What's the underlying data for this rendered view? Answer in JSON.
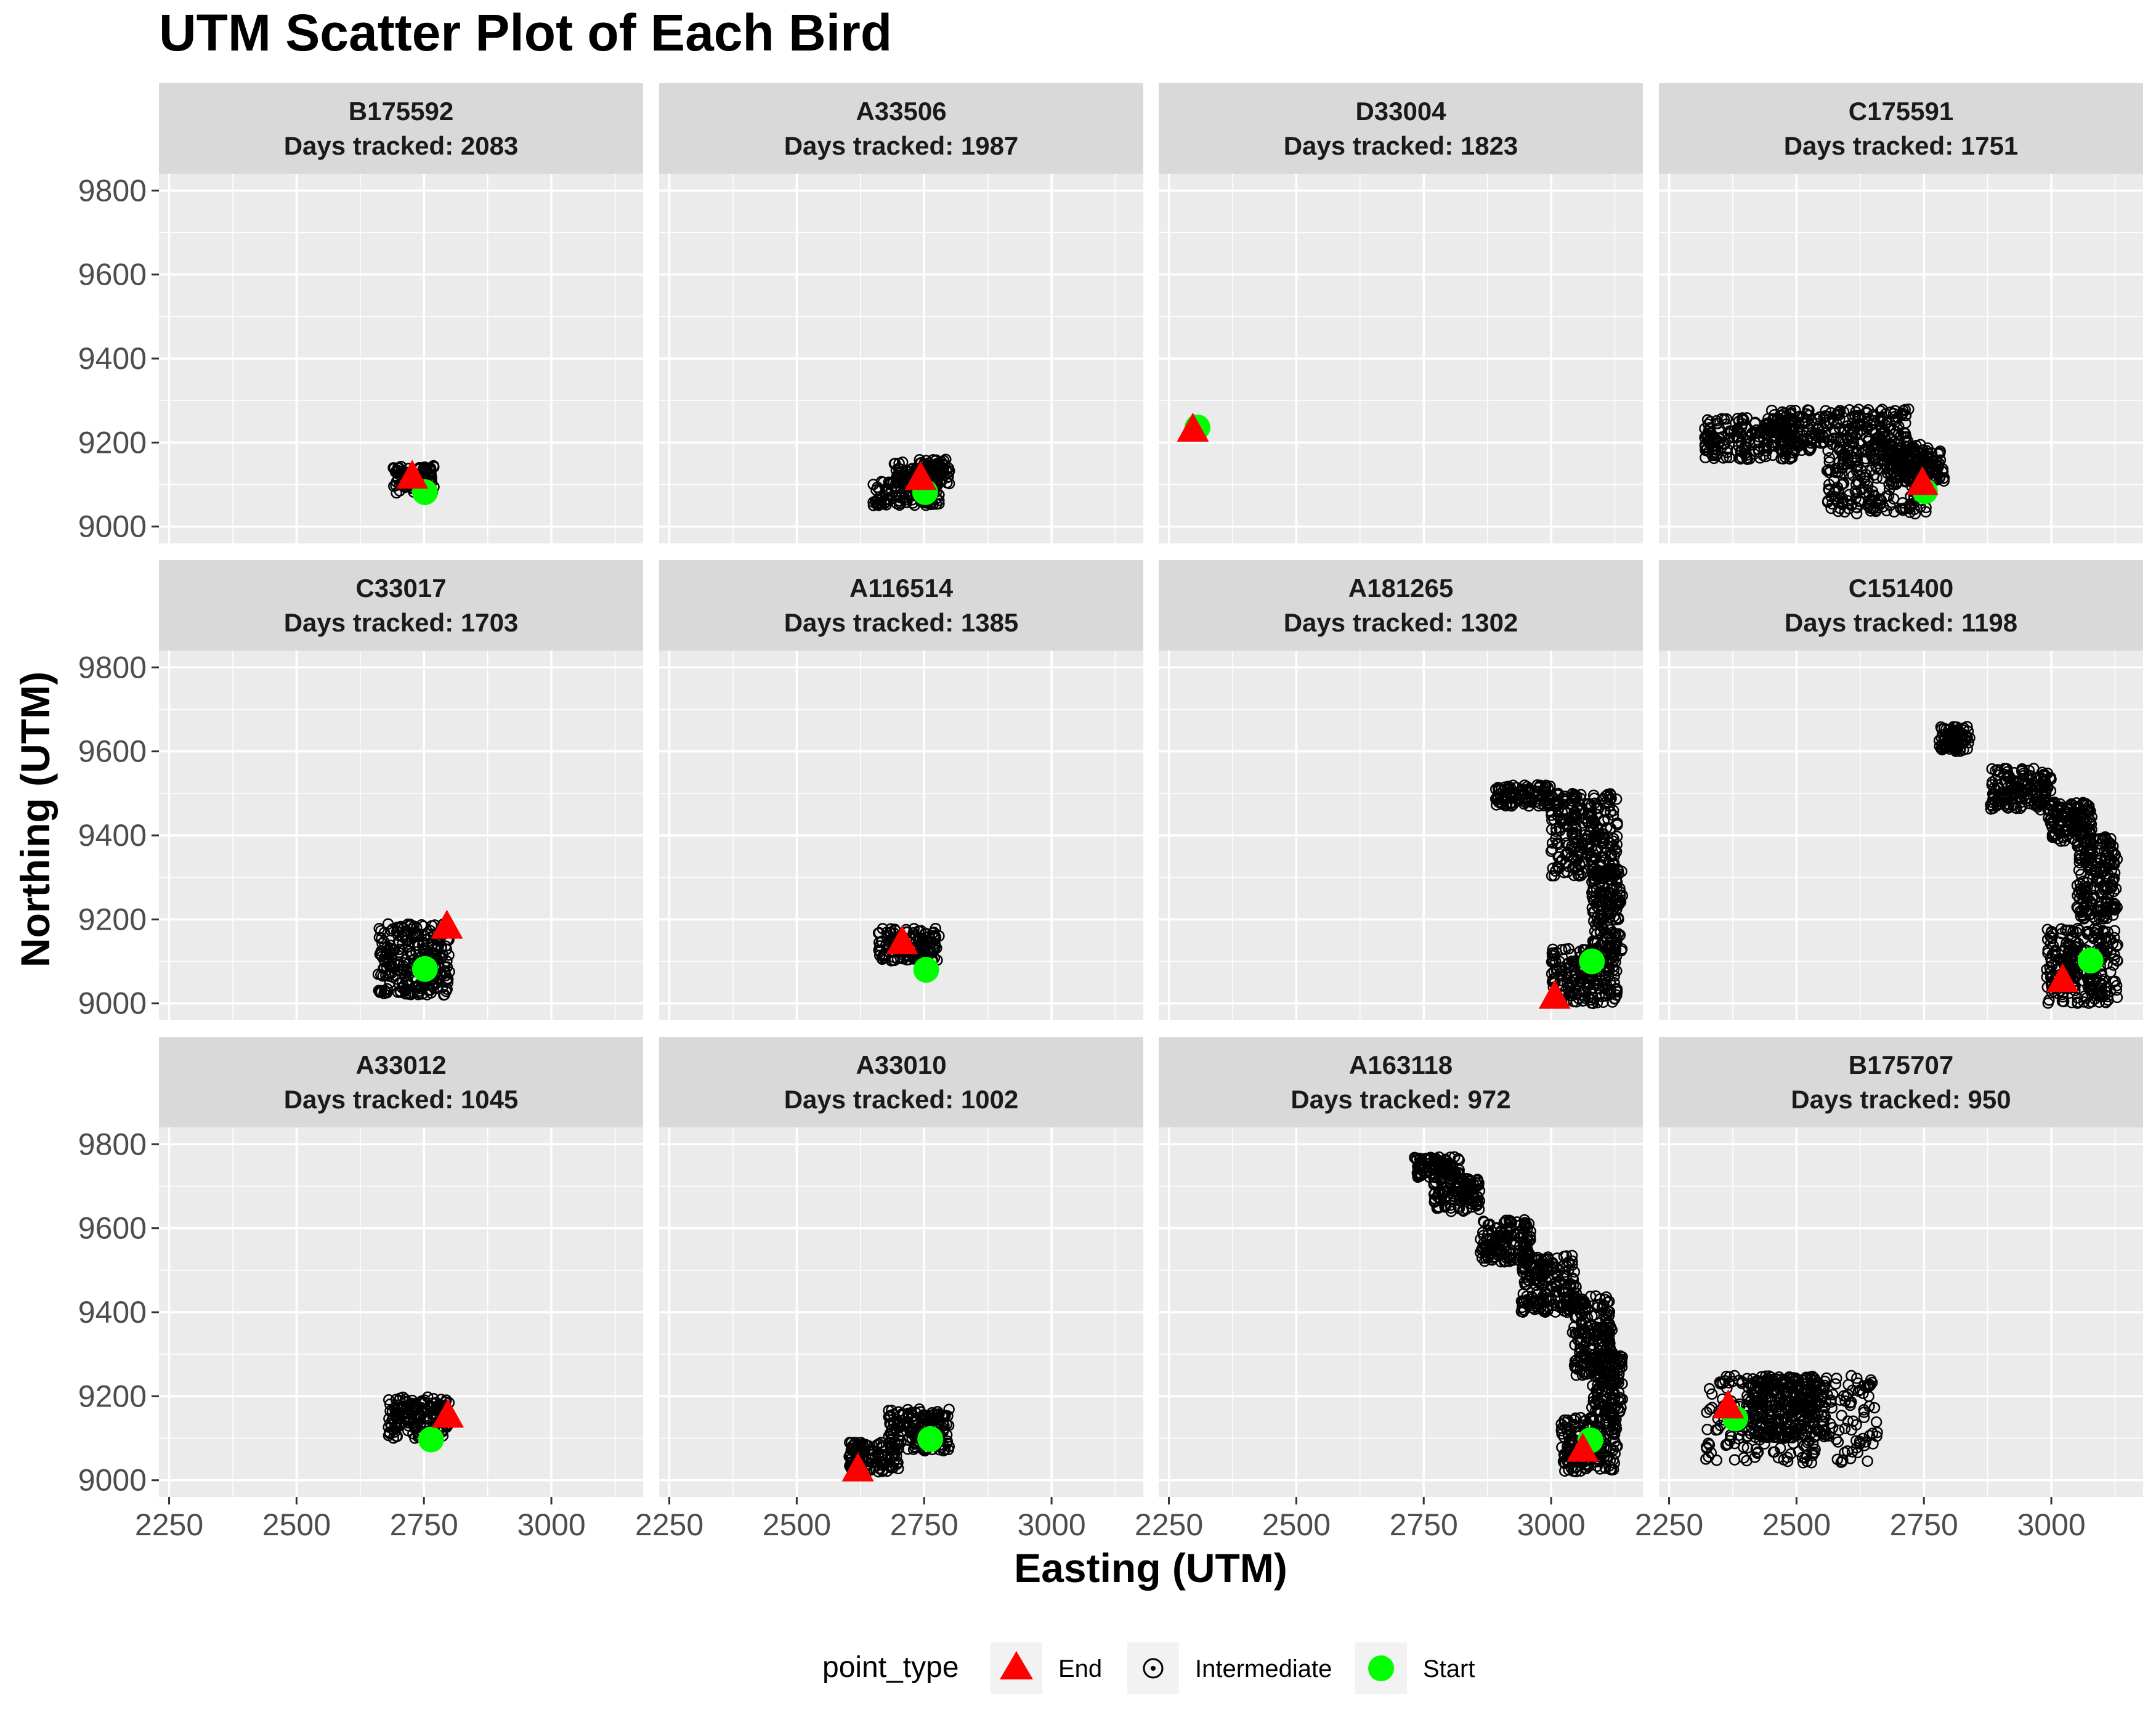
{
  "chart_data": {
    "type": "scatter",
    "title": "UTM Scatter Plot of Each Bird",
    "xlabel": "Easting (UTM)",
    "ylabel": "Northing (UTM)",
    "xlim": [
      2230,
      3180
    ],
    "ylim": [
      8960,
      9840
    ],
    "x_ticks": [
      2250,
      2500,
      2750,
      3000
    ],
    "y_ticks": [
      9000,
      9200,
      9400,
      9600,
      9800
    ],
    "grid": true,
    "legend": {
      "title": "point_type",
      "position": "bottom",
      "items": [
        {
          "label": "End",
          "shape": "triangle",
          "color": "#ff0000"
        },
        {
          "label": "Intermediate",
          "shape": "open-circle",
          "color": "#000000"
        },
        {
          "label": "Start",
          "shape": "circle",
          "color": "#00ff00"
        }
      ]
    },
    "facets": [
      {
        "id": "B175592",
        "days_label": "Days tracked: 2083",
        "start": [
          2752,
          9082
        ],
        "end": [
          2727,
          9118
        ],
        "intermediate_areas": [
          [
            2690,
            2770,
            9080,
            9145
          ]
        ]
      },
      {
        "id": "A33506",
        "days_label": "Days tracked: 1987",
        "start": [
          2752,
          9082
        ],
        "end": [
          2743,
          9115
        ],
        "intermediate_areas": [
          [
            2650,
            2780,
            9050,
            9110
          ],
          [
            2690,
            2800,
            9100,
            9160
          ]
        ]
      },
      {
        "id": "D33004",
        "days_label": "Days tracked: 1823",
        "start": [
          2306,
          9236
        ],
        "end": [
          2297,
          9230
        ],
        "intermediate_areas": []
      },
      {
        "id": "C175591",
        "days_label": "Days tracked: 1751",
        "start": [
          2752,
          9084
        ],
        "end": [
          2747,
          9103
        ],
        "intermediate_areas": [
          [
            2320,
            2500,
            9160,
            9260
          ],
          [
            2450,
            2720,
            9180,
            9280
          ],
          [
            2560,
            2760,
            9030,
            9200
          ],
          [
            2680,
            2790,
            9100,
            9180
          ]
        ]
      },
      {
        "id": "C33017",
        "days_label": "Days tracked: 1703",
        "start": [
          2752,
          9082
        ],
        "end": [
          2795,
          9182
        ],
        "intermediate_areas": [
          [
            2660,
            2800,
            9020,
            9190
          ]
        ]
      },
      {
        "id": "A116514",
        "days_label": "Days tracked: 1385",
        "start": [
          2754,
          9080
        ],
        "end": [
          2707,
          9145
        ],
        "intermediate_areas": [
          [
            2660,
            2780,
            9100,
            9180
          ]
        ]
      },
      {
        "id": "A181265",
        "days_label": "Days tracked: 1302",
        "start": [
          3080,
          9100
        ],
        "end": [
          3007,
          9015
        ],
        "intermediate_areas": [
          [
            2890,
            3000,
            9470,
            9520
          ],
          [
            3000,
            3130,
            9300,
            9500
          ],
          [
            3080,
            3140,
            9120,
            9320
          ],
          [
            3000,
            3130,
            9000,
            9130
          ]
        ]
      },
      {
        "id": "C151400",
        "days_label": "Days tracked: 1198",
        "start": [
          3077,
          9102
        ],
        "end": [
          3022,
          9055
        ],
        "intermediate_areas": [
          [
            2780,
            2840,
            9600,
            9660
          ],
          [
            2880,
            3000,
            9460,
            9560
          ],
          [
            2990,
            3080,
            9380,
            9480
          ],
          [
            3050,
            3130,
            9200,
            9400
          ],
          [
            2990,
            3130,
            9000,
            9180
          ]
        ]
      },
      {
        "id": "A33012",
        "days_label": "Days tracked: 1045",
        "start": [
          2764,
          9097
        ],
        "end": [
          2797,
          9153
        ],
        "intermediate_areas": [
          [
            2680,
            2800,
            9100,
            9200
          ]
        ]
      },
      {
        "id": "A33010",
        "days_label": "Days tracked: 1002",
        "start": [
          2762,
          9098
        ],
        "end": [
          2620,
          9025
        ],
        "intermediate_areas": [
          [
            2600,
            2700,
            9020,
            9090
          ],
          [
            2680,
            2800,
            9070,
            9170
          ]
        ]
      },
      {
        "id": "A163118",
        "days_label": "Days tracked: 972",
        "start": [
          3077,
          9095
        ],
        "end": [
          3062,
          9072
        ],
        "intermediate_areas": [
          [
            2730,
            2820,
            9720,
            9770
          ],
          [
            2770,
            2860,
            9640,
            9720
          ],
          [
            2860,
            2960,
            9520,
            9620
          ],
          [
            2940,
            3050,
            9400,
            9540
          ],
          [
            3040,
            3120,
            9250,
            9440
          ],
          [
            3080,
            3140,
            9150,
            9300
          ],
          [
            3020,
            3130,
            9020,
            9150
          ]
        ]
      },
      {
        "id": "B175707",
        "days_label": "Days tracked: 950",
        "start": [
          2380,
          9147
        ],
        "end": [
          2366,
          9175
        ],
        "intermediate_areas": [
          [
            2320,
            2660,
            9040,
            9250
          ],
          [
            2400,
            2560,
            9100,
            9250
          ]
        ]
      }
    ]
  }
}
